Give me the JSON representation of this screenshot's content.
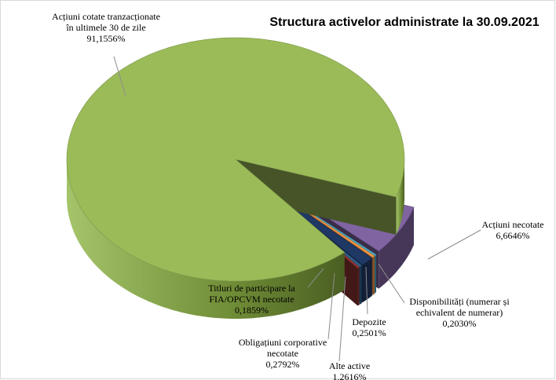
{
  "chart_data": {
    "type": "pie",
    "title": "Structura activelor administrate la 30.09.2021",
    "categories": [
      "Acțiuni necotate",
      "Disponibilități (numerar și echivalent de numerar)",
      "Depozite",
      "Alte active",
      "Obligațiuni corporative necotate",
      "Titluri de participare la FIA/OPCVM necotate",
      "Acțiuni cotate tranzacționate în ultimele 30 de zile"
    ],
    "values": [
      6.6646,
      0.203,
      0.2501,
      1.2616,
      0.2792,
      0.1859,
      91.1556
    ],
    "value_labels": [
      "6,6646%",
      "0,2030%",
      "0,2501%",
      "1,2616%",
      "0,2792%",
      "0,1859%",
      "91,1556%"
    ],
    "colors": [
      "#8064a2",
      "#4bacc6",
      "#f79646",
      "#1f3864",
      "#2e5f8a",
      "#953735",
      "#9bbb59"
    ],
    "exploded": [
      true,
      true,
      true,
      true,
      true,
      true,
      false
    ]
  }
}
